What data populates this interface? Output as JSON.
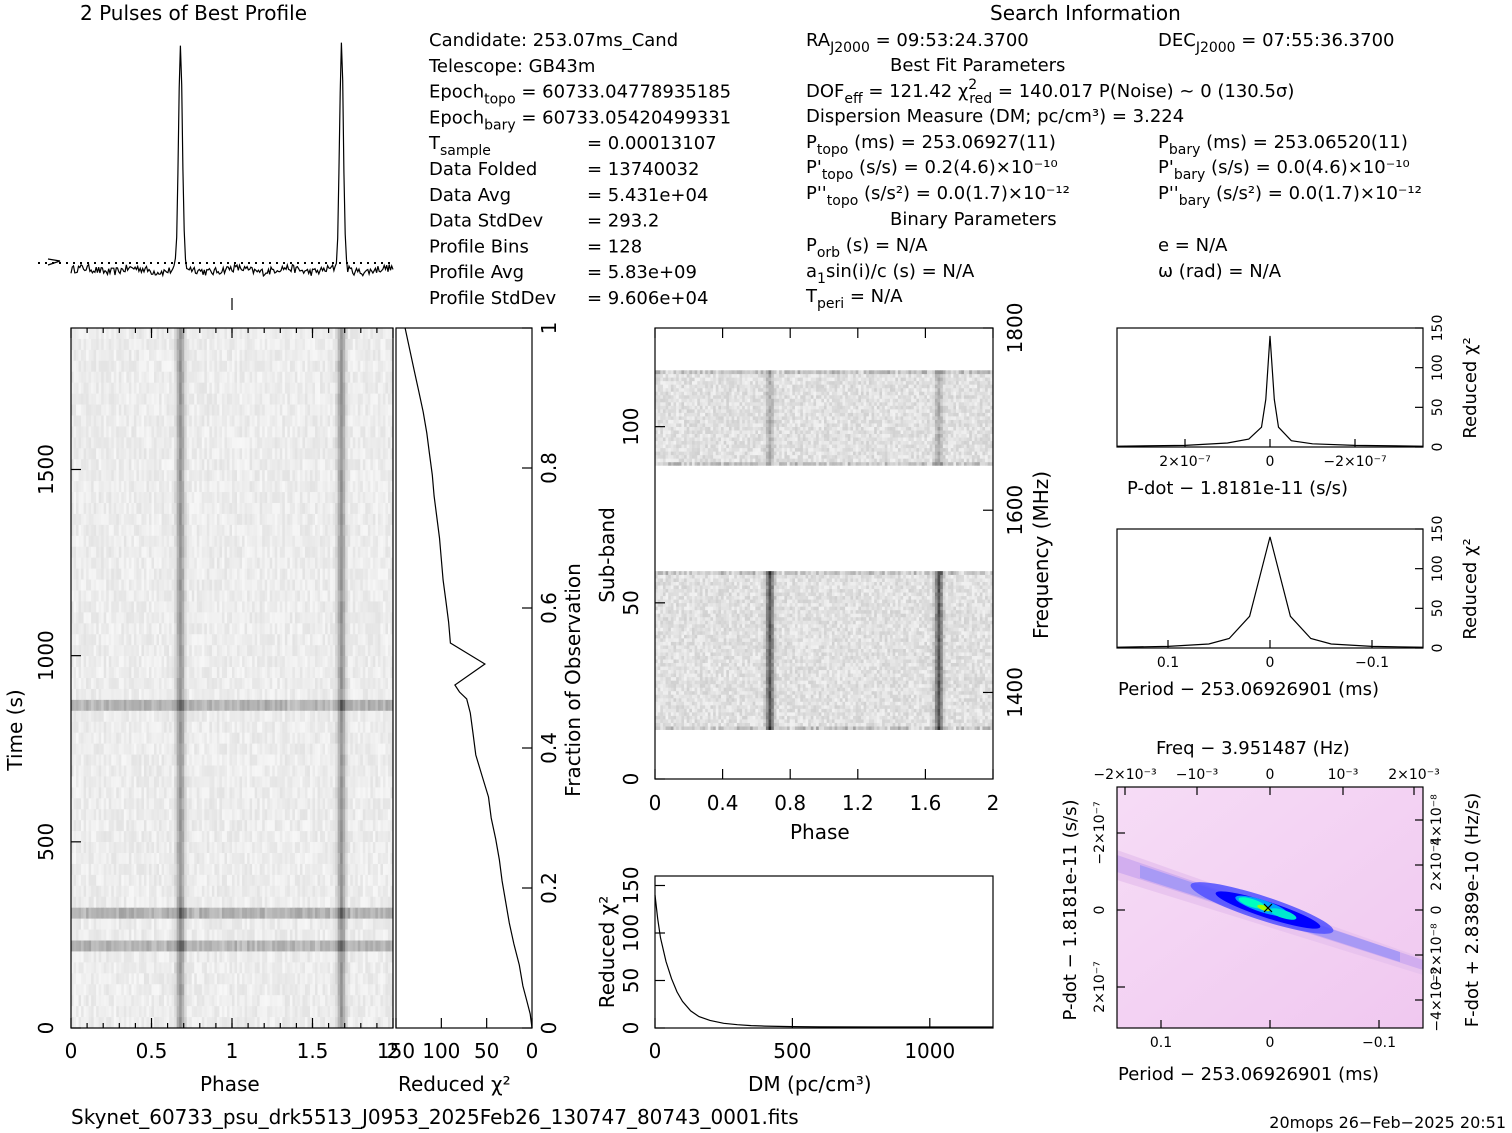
{
  "chart_data": [
    {
      "panel": "profile",
      "type": "line",
      "title": "2 Pulses of Best Profile",
      "phase_peaks": [
        0.68,
        1.68
      ],
      "phase_range": [
        0,
        2
      ]
    },
    {
      "panel": "time-phase",
      "type": "heatmap",
      "xlabel": "Phase",
      "ylabel": "Time (s)",
      "xlim": [
        0,
        2
      ],
      "ylim": [
        0,
        1880
      ],
      "xticks": [
        "0",
        "0.5",
        "1",
        "1.5",
        "2"
      ],
      "yticks": [
        "0",
        "500",
        "1000",
        "1500"
      ],
      "pulse_phases": [
        0.68,
        1.68
      ],
      "bright_rows_time_s": [
        235,
        315,
        880
      ]
    },
    {
      "panel": "chi2-vs-fraction",
      "type": "line",
      "xlabel": "Reduced χ²",
      "ylabel": "Fraction of Observation",
      "xticks": [
        "150",
        "100",
        "50",
        "0"
      ],
      "yticks": [
        "0",
        "0.2",
        "0.4",
        "0.6",
        "0.8",
        "1"
      ],
      "xlim": [
        150,
        0
      ],
      "ylim": [
        0,
        1
      ],
      "x": [
        0,
        2,
        6,
        10,
        14,
        20,
        25,
        29,
        33,
        36,
        40,
        45,
        48,
        55,
        62,
        65,
        68,
        72,
        80,
        85,
        52,
        90,
        92,
        95,
        98,
        100,
        102,
        105,
        108,
        110,
        113,
        116,
        120,
        125,
        130,
        135,
        140
      ],
      "y": [
        0,
        0.02,
        0.04,
        0.06,
        0.09,
        0.12,
        0.15,
        0.18,
        0.21,
        0.24,
        0.27,
        0.3,
        0.33,
        0.36,
        0.39,
        0.42,
        0.45,
        0.47,
        0.48,
        0.49,
        0.52,
        0.55,
        0.58,
        0.61,
        0.64,
        0.67,
        0.7,
        0.73,
        0.76,
        0.79,
        0.82,
        0.85,
        0.88,
        0.91,
        0.94,
        0.97,
        1.0
      ]
    },
    {
      "panel": "subband-phase",
      "type": "heatmap",
      "xlabel": "Phase",
      "ylabel": "Sub-band",
      "right_label": "Frequency (MHz)",
      "xticks": [
        "0",
        "0.4",
        "0.8",
        "1.2",
        "1.6",
        "2"
      ],
      "yticks": [
        "0",
        "50",
        "100"
      ],
      "freq_ticks": [
        "1400",
        "1600",
        "1800"
      ],
      "xlim": [
        0,
        2
      ],
      "ylim": [
        0,
        128
      ],
      "pulse_phases": [
        0.68,
        1.68
      ],
      "occupied_subbands": [
        [
          14,
          59
        ],
        [
          89,
          116
        ]
      ]
    },
    {
      "panel": "dm-chi2",
      "type": "line",
      "xlabel": "DM (pc/cm³)",
      "ylabel": "Reduced χ²",
      "xticks": [
        "0",
        "500",
        "1000"
      ],
      "yticks": [
        "0",
        "50",
        "100",
        "150"
      ],
      "xlim": [
        0,
        1230
      ],
      "ylim": [
        0,
        160
      ],
      "x": [
        0,
        10,
        20,
        40,
        60,
        80,
        100,
        130,
        160,
        200,
        250,
        300,
        350,
        400,
        500,
        600,
        800,
        1000,
        1230
      ],
      "y": [
        140,
        115,
        95,
        70,
        52,
        38,
        28,
        18,
        12,
        8,
        5,
        3.5,
        2.5,
        2,
        1.5,
        1.2,
        1,
        1,
        1
      ]
    },
    {
      "panel": "pdot-chi2",
      "type": "line",
      "xlabel": "P-dot − 1.8181e-11 (s/s)",
      "ylabel": "Reduced χ²",
      "xticks": [
        "2×10⁻⁷",
        "0",
        "−2×10⁻⁷"
      ],
      "yticks": [
        "0",
        "50",
        "100",
        "150"
      ],
      "ylim": [
        0,
        150
      ],
      "x": [
        -3.6e-07,
        -2e-07,
        -1e-07,
        -5e-08,
        -2e-08,
        -1e-08,
        0,
        1e-08,
        2e-08,
        5e-08,
        1e-07,
        2e-07,
        3.6e-07
      ],
      "y": [
        1,
        2,
        4,
        8,
        25,
        60,
        140,
        60,
        25,
        10,
        5,
        2,
        1
      ]
    },
    {
      "panel": "period-chi2",
      "type": "line",
      "xlabel": "Period − 253.06926901 (ms)",
      "ylabel": "Reduced χ²",
      "xticks": [
        "0.1",
        "0",
        "−0.1"
      ],
      "yticks": [
        "0",
        "50",
        "100",
        "150"
      ],
      "ylim": [
        0,
        150
      ],
      "x": [
        -0.15,
        -0.1,
        -0.06,
        -0.04,
        -0.02,
        -0.01,
        0,
        0.01,
        0.02,
        0.04,
        0.06,
        0.1,
        0.15
      ],
      "y": [
        1,
        2,
        5,
        12,
        40,
        90,
        140,
        90,
        40,
        12,
        5,
        2,
        1
      ]
    },
    {
      "panel": "p-pdot-plane",
      "type": "heatmap",
      "title": "Freq − 3.951487 (Hz)",
      "xlabel": "Period − 253.06926901 (ms)",
      "ylabel": "P-dot − 1.8181e-11 (s/s)",
      "right_label": "F-dot + 2.8389e-10 (Hz/s)",
      "xticks": [
        "0.1",
        "0",
        "−0.1"
      ],
      "top_ticks": [
        "−2×10⁻³",
        "−10⁻³",
        "0",
        "10⁻³",
        "2×10⁻³"
      ],
      "yticks": [
        "−2×10⁻⁷",
        "0",
        "2×10⁻⁷"
      ],
      "right_ticks": [
        "4×10⁻⁸",
        "2×10⁻⁸",
        "0",
        "−2×10⁻⁸",
        "−4×10⁻⁸"
      ]
    }
  ],
  "info": {
    "search_title": "Search Information",
    "col1": [
      {
        "k": "Candidate:  253.07ms_Cand"
      },
      {
        "k": "Telescope:   GB43m"
      },
      {
        "k": "Epoch",
        "sub": "topo",
        "v": " = 60733.04778935185"
      },
      {
        "k": "Epoch",
        "sub": "bary",
        "v": " = 60733.05420499331"
      },
      {
        "k": "T",
        "sub": "sample",
        "v": "",
        "rhs": "=   0.00013107"
      },
      {
        "k": "Data Folded",
        "rhs": "=   13740032"
      },
      {
        "k": "Data Avg",
        "rhs": "=   5.431e+04"
      },
      {
        "k": "Data StdDev",
        "rhs": "=   293.2"
      },
      {
        "k": "Profile Bins",
        "rhs": "=   128"
      },
      {
        "k": "Profile Avg",
        "rhs": "=   5.83e+09"
      },
      {
        "k": "Profile StdDev",
        "rhs": "=   9.606e+04"
      }
    ],
    "ra": {
      "k": "RA",
      "sub": "J2000",
      "v": " = 09:53:24.3700"
    },
    "dec": {
      "k": "DEC",
      "sub": "J2000",
      "v": " = 07:55:36.3700"
    },
    "best_fit_title": "Best Fit Parameters",
    "dof": {
      "k": "DOF",
      "sub": "eff",
      "v": " = 121.42  "
    },
    "chi": {
      "k": "χ",
      "sup": "2",
      "sub": "red",
      "v": " = 140.017   P(Noise) ~ 0    (130.5σ)"
    },
    "dm": "Dispersion Measure (DM; pc/cm³) = 3.224",
    "ptopo": {
      "k": "P",
      "sub": "topo",
      "v": " (ms) =  253.06927(11)"
    },
    "pbary": {
      "k": "P",
      "sub": "bary",
      "v": " (ms) =  253.06520(11)"
    },
    "pdtopo": {
      "k": "P'",
      "sub": "topo",
      "v": " (s/s) =  0.2(4.6)×10⁻¹⁰"
    },
    "pdbary": {
      "k": "P'",
      "sub": "bary",
      "v": " (s/s) = 0.0(4.6)×10⁻¹⁰"
    },
    "pddtopo": {
      "k": "P''",
      "sub": "topo",
      "v": " (s/s²) = 0.0(1.7)×10⁻¹²"
    },
    "pddbary": {
      "k": "P''",
      "sub": "bary",
      "v": " (s/s²) = 0.0(1.7)×10⁻¹²"
    },
    "binary_title": "Binary Parameters",
    "porb": {
      "k": "P",
      "sub": "orb",
      "v": " (s) = N/A"
    },
    "asini": {
      "k": "a",
      "sub": "1",
      "v": "sin(i)/c (s) = N/A"
    },
    "tperi": {
      "k": "T",
      "sub": "peri",
      "v": " = N/A"
    },
    "ecc": "e = N/A",
    "omega": "ω (rad) = N/A"
  },
  "footer": {
    "filename": "Skynet_60733_psu_drk5513_J0953_2025Feb26_130747_80743_0001.fits",
    "stamp": "20mops 26−Feb−2025 20:51"
  }
}
